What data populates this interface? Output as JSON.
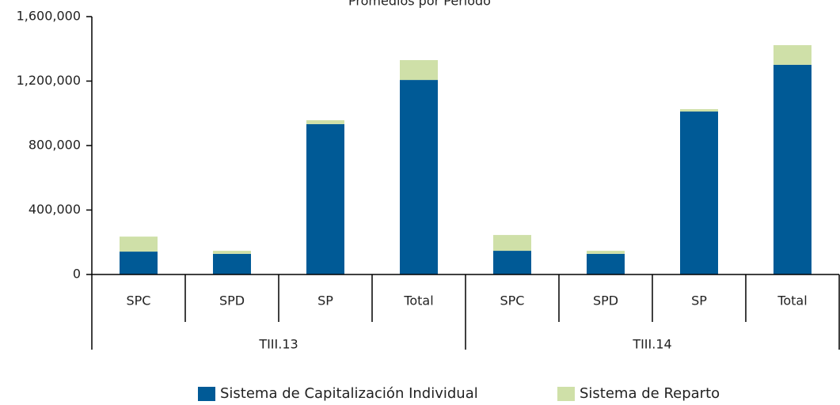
{
  "chart_data": {
    "type": "bar",
    "stacked": true,
    "title": "Promedios por Período",
    "categories": [
      "SPC",
      "SPD",
      "SP",
      "Total",
      "SPC",
      "SPD",
      "SP",
      "Total"
    ],
    "groups": [
      "TIII.13",
      "TIII.14"
    ],
    "series": [
      {
        "name": "Sistema de Capitalización Individual",
        "color": "#005a96",
        "values": [
          142000,
          128000,
          933000,
          1207000,
          147000,
          128000,
          1011000,
          1301000
        ]
      },
      {
        "name": "Sistema de Reparto",
        "color": "#cfe0a8",
        "values": [
          93000,
          19000,
          24000,
          123000,
          98000,
          19000,
          15000,
          122000
        ]
      }
    ],
    "ylim": [
      0,
      1600000
    ],
    "yticks": [
      0,
      {
        "value": 400000,
        "label": "400,000"
      },
      {
        "value": 800000,
        "label": "800,000"
      },
      {
        "value": 1200000,
        "label": "1,200,000"
      },
      {
        "value": 1600000,
        "label": "1,600,000"
      }
    ],
    "grid": false
  }
}
